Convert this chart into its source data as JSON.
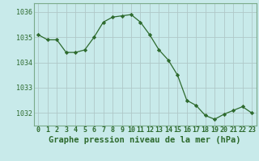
{
  "x": [
    0,
    1,
    2,
    3,
    4,
    5,
    6,
    7,
    8,
    9,
    10,
    11,
    12,
    13,
    14,
    15,
    16,
    17,
    18,
    19,
    20,
    21,
    22,
    23
  ],
  "y": [
    1035.1,
    1034.9,
    1034.9,
    1034.4,
    1034.4,
    1034.5,
    1035.0,
    1035.6,
    1035.8,
    1035.85,
    1035.9,
    1035.6,
    1035.1,
    1034.5,
    1034.1,
    1033.5,
    1032.5,
    1032.3,
    1031.9,
    1031.75,
    1031.95,
    1032.1,
    1032.25,
    1032.0
  ],
  "line_color": "#2d6a2d",
  "marker_color": "#2d6a2d",
  "bg_color": "#c8eaea",
  "grid_color": "#b0c8c8",
  "axis_label_color": "#2d6a2d",
  "xlabel": "Graphe pression niveau de la mer (hPa)",
  "ylim_min": 1031.5,
  "ylim_max": 1036.35,
  "yticks": [
    1032,
    1033,
    1034,
    1035,
    1036
  ],
  "xticks": [
    0,
    1,
    2,
    3,
    4,
    5,
    6,
    7,
    8,
    9,
    10,
    11,
    12,
    13,
    14,
    15,
    16,
    17,
    18,
    19,
    20,
    21,
    22,
    23
  ],
  "xlabel_fontsize": 7.5,
  "tick_fontsize": 6.0,
  "ytick_fontsize": 6.0
}
